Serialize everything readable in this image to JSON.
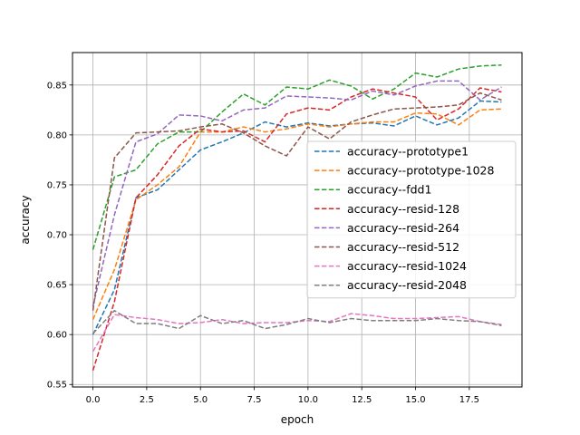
{
  "chart_data": {
    "type": "line",
    "title": "",
    "xlabel": "epoch",
    "ylabel": "accuracy",
    "xlim": [
      -0.95,
      19.95
    ],
    "ylim": [
      0.5475,
      0.8825
    ],
    "xticks": [
      0.0,
      2.5,
      5.0,
      7.5,
      10.0,
      12.5,
      15.0,
      17.5
    ],
    "xtick_labels": [
      "0.0",
      "2.5",
      "5.0",
      "7.5",
      "10.0",
      "12.5",
      "15.0",
      "17.5"
    ],
    "yticks": [
      0.55,
      0.6,
      0.65,
      0.7,
      0.75,
      0.8,
      0.85
    ],
    "ytick_labels": [
      "0.55",
      "0.60",
      "0.65",
      "0.70",
      "0.75",
      "0.80",
      "0.85"
    ],
    "grid": true,
    "legend_position": "center-right",
    "line_style": "dashed",
    "x": [
      0,
      1,
      2,
      3,
      4,
      5,
      6,
      7,
      8,
      9,
      10,
      11,
      12,
      13,
      14,
      15,
      16,
      17,
      18,
      19
    ],
    "series": [
      {
        "name": "accuracy--prototype1",
        "color": "#1f77b4",
        "values": [
          0.6,
          0.645,
          0.737,
          0.745,
          0.765,
          0.785,
          0.793,
          0.802,
          0.813,
          0.808,
          0.812,
          0.809,
          0.811,
          0.812,
          0.809,
          0.819,
          0.81,
          0.817,
          0.834,
          0.833
        ]
      },
      {
        "name": "accuracy--prototype-1028",
        "color": "#ff7f0e",
        "values": [
          0.615,
          0.665,
          0.735,
          0.75,
          0.768,
          0.803,
          0.803,
          0.808,
          0.803,
          0.806,
          0.811,
          0.808,
          0.811,
          0.813,
          0.813,
          0.822,
          0.821,
          0.81,
          0.825,
          0.826
        ]
      },
      {
        "name": "accuracy--fdd1",
        "color": "#2ca02c",
        "values": [
          0.685,
          0.758,
          0.765,
          0.791,
          0.803,
          0.803,
          0.823,
          0.841,
          0.83,
          0.848,
          0.846,
          0.855,
          0.849,
          0.836,
          0.846,
          0.862,
          0.858,
          0.866,
          0.869,
          0.87
        ]
      },
      {
        "name": "accuracy--resid-128",
        "color": "#d62728",
        "values": [
          0.564,
          0.633,
          0.737,
          0.76,
          0.789,
          0.806,
          0.803,
          0.804,
          0.793,
          0.821,
          0.827,
          0.825,
          0.838,
          0.846,
          0.842,
          0.838,
          0.815,
          0.826,
          0.847,
          0.843
        ]
      },
      {
        "name": "accuracy--resid-264",
        "color": "#9467bd",
        "values": [
          0.628,
          0.72,
          0.793,
          0.801,
          0.82,
          0.819,
          0.814,
          0.825,
          0.827,
          0.839,
          0.838,
          0.837,
          0.835,
          0.844,
          0.84,
          0.849,
          0.854,
          0.854,
          0.835,
          0.848
        ]
      },
      {
        "name": "accuracy--resid-512",
        "color": "#8c564b",
        "values": [
          0.624,
          0.777,
          0.802,
          0.803,
          0.804,
          0.808,
          0.811,
          0.802,
          0.789,
          0.779,
          0.808,
          0.796,
          0.813,
          0.82,
          0.826,
          0.827,
          0.828,
          0.83,
          0.842,
          0.835
        ]
      },
      {
        "name": "accuracy--resid-1024",
        "color": "#e377c2",
        "values": [
          0.583,
          0.62,
          0.617,
          0.615,
          0.611,
          0.612,
          0.615,
          0.611,
          0.612,
          0.612,
          0.614,
          0.613,
          0.621,
          0.619,
          0.616,
          0.616,
          0.617,
          0.618,
          0.613,
          0.61
        ]
      },
      {
        "name": "accuracy--resid-2048",
        "color": "#7f7f7f",
        "values": [
          0.601,
          0.624,
          0.611,
          0.611,
          0.606,
          0.619,
          0.611,
          0.614,
          0.606,
          0.61,
          0.616,
          0.612,
          0.616,
          0.614,
          0.614,
          0.614,
          0.616,
          0.614,
          0.613,
          0.609
        ]
      }
    ]
  }
}
